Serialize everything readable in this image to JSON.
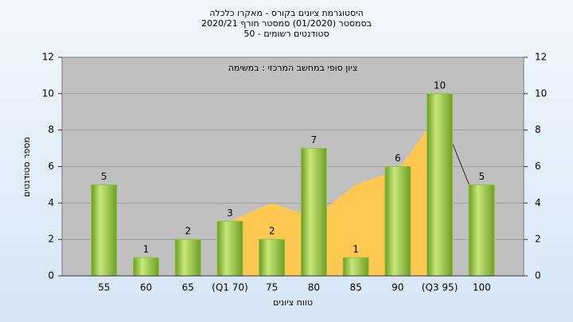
{
  "chart_data": {
    "type": "bar",
    "title": [
      "היסטוגרמת ציונים בקורס - מאקרו כלכלה",
      "בסמסטר (01/2020) סמסטר חורף 2020/21",
      "סטודנטים רשומים - 50"
    ],
    "annotation": "ציון סופי במחשב המרכזי : במשימה",
    "x_label": "טווח ציונים",
    "y_label": "מספר סטודנטים",
    "categories": [
      "55",
      "60",
      "65",
      "(Q1 70)",
      "75",
      "80",
      "85",
      "90",
      "(Q3 95)",
      "100"
    ],
    "values": [
      5,
      1,
      2,
      3,
      2,
      7,
      1,
      6,
      10,
      5
    ],
    "color": "#8fc43a",
    "curve": {
      "color": "#ffc850",
      "values": [
        null,
        null,
        null,
        3,
        4,
        3.2,
        5,
        5.8,
        9,
        3.3
      ]
    },
    "ylim": [
      0,
      12
    ],
    "yticks": [
      0,
      2,
      4,
      6,
      8,
      10,
      12
    ],
    "y2lim": [
      0,
      12
    ],
    "y2ticks": [
      0,
      2,
      4,
      6,
      8,
      10,
      12
    ],
    "grid": true
  }
}
